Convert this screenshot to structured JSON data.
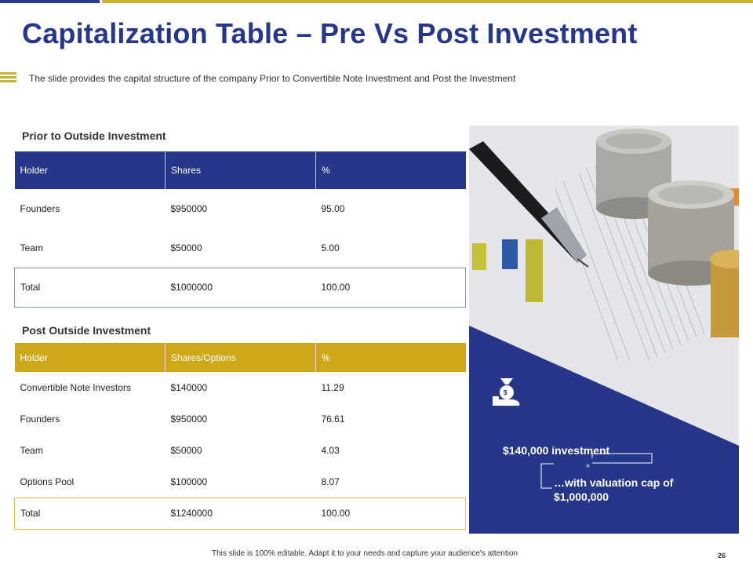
{
  "title": "Capitalization Table – Pre Vs Post Investment",
  "subtitle": "The slide provides  the capital structure of the company Prior to Convertible  Note Investment  and Post the Investment",
  "colors": {
    "navy": "#26378a",
    "gold": "#cda91a"
  },
  "prior": {
    "heading": "Prior to Outside Investment",
    "headers": [
      "Holder",
      "Shares",
      "%"
    ],
    "rows": [
      [
        "Founders",
        "$950000",
        "95.00"
      ],
      [
        "Team",
        "$50000",
        "5.00"
      ],
      [
        "Total",
        "$1000000",
        "100.00"
      ]
    ]
  },
  "post": {
    "heading": "Post Outside Investment",
    "headers": [
      "Holder",
      "Shares/Options",
      "%"
    ],
    "rows": [
      [
        "Convertible  Note Investors",
        "$140000",
        "11.29"
      ],
      [
        "Founders",
        "$950000",
        "76.61"
      ],
      [
        "Team",
        "$50000",
        "4.03"
      ],
      [
        "Options Pool",
        "$100000",
        "8.07"
      ],
      [
        "Total",
        "$1240000",
        "100.00"
      ]
    ]
  },
  "callout": {
    "icon": "money-bag-hand-icon",
    "investment": "$140,000 investment",
    "cap_line1": "…with valuation cap of",
    "cap_line2": "$1,000,000"
  },
  "footer": "This slide is 100% editable. Adapt it to your needs and capture your audience's attention",
  "page_number": "26"
}
